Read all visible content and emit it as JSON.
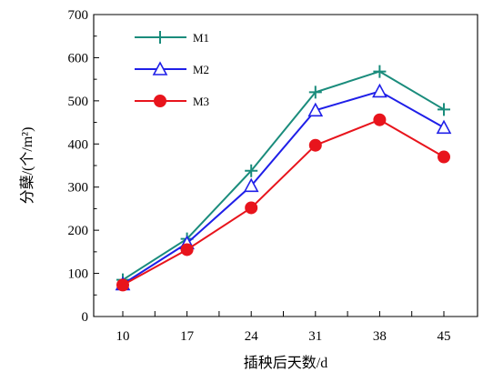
{
  "chart_data": {
    "type": "line",
    "title": "",
    "xlabel": "插秧后天数/d",
    "ylabel": "分蘖/(个/m²)",
    "categories": [
      10,
      17,
      24,
      31,
      38,
      45
    ],
    "ylim": [
      0,
      700
    ],
    "yticks": [
      0,
      100,
      200,
      300,
      400,
      500,
      600,
      700
    ],
    "grid": false,
    "legend_position": "top-left",
    "series": [
      {
        "name": "M1",
        "color": "#1a8c7c",
        "marker": "plus",
        "values": [
          85,
          180,
          338,
          520,
          568,
          480
        ]
      },
      {
        "name": "M2",
        "color": "#1f1fe8",
        "marker": "triangle",
        "values": [
          75,
          170,
          303,
          478,
          522,
          438
        ]
      },
      {
        "name": "M3",
        "color": "#e8141c",
        "marker": "circle",
        "values": [
          73,
          155,
          252,
          397,
          456,
          370
        ]
      }
    ]
  }
}
